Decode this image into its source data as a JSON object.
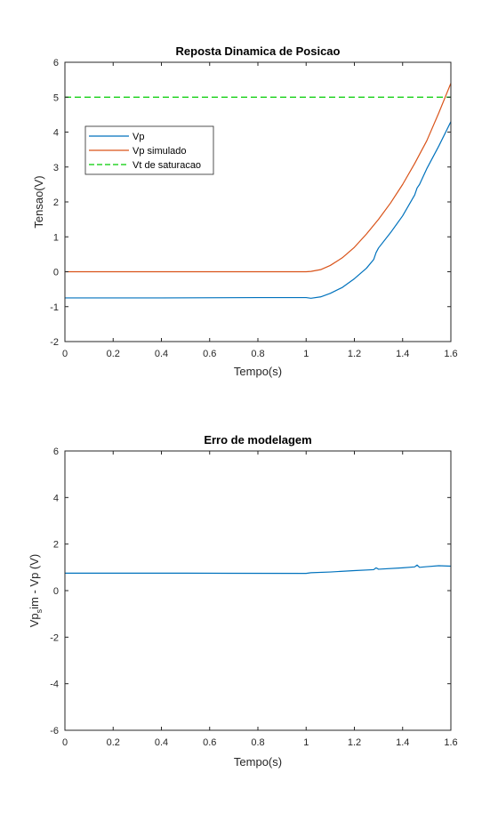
{
  "chart_data": [
    {
      "type": "line",
      "title": "Reposta Dinamica de Posicao",
      "xlabel": "Tempo(s)",
      "ylabel": "Tensao(V)",
      "xlim": [
        0,
        1.6
      ],
      "ylim": [
        -2,
        6
      ],
      "xticks": [
        "0",
        "0.2",
        "0.4",
        "0.6",
        "0.8",
        "1",
        "1.2",
        "1.4",
        "1.6"
      ],
      "yticks": [
        "-2",
        "-1",
        "0",
        "1",
        "2",
        "3",
        "4",
        "5",
        "6"
      ],
      "grid": false,
      "legend_position": "upper-left",
      "series": [
        {
          "name": "Vp",
          "color": "#0072bd",
          "style": "solid",
          "points": [
            [
              0,
              -0.75
            ],
            [
              0.4,
              -0.75
            ],
            [
              0.8,
              -0.74
            ],
            [
              1.0,
              -0.74
            ],
            [
              1.02,
              -0.76
            ],
            [
              1.06,
              -0.72
            ],
            [
              1.1,
              -0.62
            ],
            [
              1.15,
              -0.45
            ],
            [
              1.2,
              -0.2
            ],
            [
              1.25,
              0.1
            ],
            [
              1.28,
              0.35
            ],
            [
              1.29,
              0.55
            ],
            [
              1.3,
              0.68
            ],
            [
              1.35,
              1.12
            ],
            [
              1.4,
              1.6
            ],
            [
              1.45,
              2.2
            ],
            [
              1.46,
              2.4
            ],
            [
              1.47,
              2.5
            ],
            [
              1.5,
              2.95
            ],
            [
              1.55,
              3.6
            ],
            [
              1.6,
              4.3
            ]
          ]
        },
        {
          "name": "Vp simulado",
          "color": "#d95319",
          "style": "solid",
          "points": [
            [
              0,
              0
            ],
            [
              0.5,
              0
            ],
            [
              1.0,
              0
            ],
            [
              1.02,
              0.01
            ],
            [
              1.06,
              0.06
            ],
            [
              1.1,
              0.18
            ],
            [
              1.15,
              0.4
            ],
            [
              1.2,
              0.7
            ],
            [
              1.25,
              1.08
            ],
            [
              1.3,
              1.5
            ],
            [
              1.35,
              1.97
            ],
            [
              1.4,
              2.5
            ],
            [
              1.45,
              3.1
            ],
            [
              1.5,
              3.75
            ],
            [
              1.55,
              4.55
            ],
            [
              1.6,
              5.4
            ]
          ]
        },
        {
          "name": "Vt de saturacao",
          "color": "#00cc00",
          "style": "dashed",
          "points": [
            [
              0,
              5
            ],
            [
              1.6,
              5
            ]
          ]
        }
      ]
    },
    {
      "type": "line",
      "title": "Erro de modelagem",
      "xlabel": "Tempo(s)",
      "ylabel_main": "Vp",
      "ylabel_sub": "s",
      "ylabel_rest": "im - Vp (V)",
      "xlim": [
        0,
        1.6
      ],
      "ylim": [
        -6,
        6
      ],
      "xticks": [
        "0",
        "0.2",
        "0.4",
        "0.6",
        "0.8",
        "1",
        "1.2",
        "1.4",
        "1.6"
      ],
      "yticks": [
        "-6",
        "-4",
        "-2",
        "0",
        "2",
        "4",
        "6"
      ],
      "grid": false,
      "series": [
        {
          "color": "#0072bd",
          "style": "solid",
          "points": [
            [
              0,
              0.75
            ],
            [
              0.5,
              0.75
            ],
            [
              1.0,
              0.74
            ],
            [
              1.02,
              0.77
            ],
            [
              1.1,
              0.8
            ],
            [
              1.2,
              0.86
            ],
            [
              1.28,
              0.9
            ],
            [
              1.29,
              0.98
            ],
            [
              1.3,
              0.92
            ],
            [
              1.4,
              0.98
            ],
            [
              1.45,
              1.02
            ],
            [
              1.46,
              1.1
            ],
            [
              1.47,
              1.0
            ],
            [
              1.5,
              1.03
            ],
            [
              1.55,
              1.07
            ],
            [
              1.6,
              1.05
            ]
          ]
        }
      ]
    }
  ]
}
